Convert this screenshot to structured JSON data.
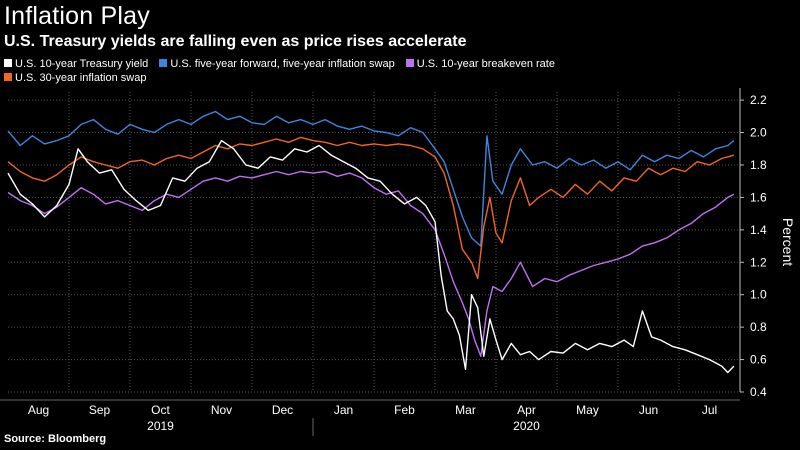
{
  "colors": {
    "background": "#000000",
    "text": "#ffffff",
    "grid": "#555555",
    "treasury": "#ffffff",
    "five_year": "#3b87e0",
    "breakeven": "#bf6ff2",
    "thirty_year": "#f26522"
  },
  "chart_data": {
    "type": "line",
    "title": "Inflation Play",
    "subtitle": "U.S. Treasury yields are falling even as price rises accelerate",
    "source": "Source: Bloomberg",
    "xlabel": "",
    "ylabel": "Percent",
    "ylim": [
      0.4,
      2.25
    ],
    "y_ticks": [
      0.4,
      0.6,
      0.8,
      1.0,
      1.2,
      1.4,
      1.6,
      1.8,
      2.0,
      2.2
    ],
    "y_tick_labels": [
      "0.4",
      "0.6",
      "0.8",
      "1.0",
      "1.2",
      "1.4",
      "1.6",
      "1.8",
      "2.0",
      "2.2"
    ],
    "x_domain_months": [
      0,
      12.0
    ],
    "x_ticks": [
      {
        "label": "Aug",
        "month": 0.5
      },
      {
        "label": "Sep",
        "month": 1.5
      },
      {
        "label": "Oct",
        "month": 2.5
      },
      {
        "label": "Nov",
        "month": 3.5
      },
      {
        "label": "Dec",
        "month": 4.5
      },
      {
        "label": "Jan",
        "month": 5.5
      },
      {
        "label": "Feb",
        "month": 6.5
      },
      {
        "label": "Mar",
        "month": 7.5
      },
      {
        "label": "Apr",
        "month": 8.5
      },
      {
        "label": "May",
        "month": 9.5
      },
      {
        "label": "Jun",
        "month": 10.5
      },
      {
        "label": "Jul",
        "month": 11.5
      }
    ],
    "year_labels": [
      {
        "label": "2019",
        "month": 2.5
      },
      {
        "label": "2020",
        "month": 8.5
      }
    ],
    "year_divider_month": 5,
    "grid": true,
    "legend_position": "top-left",
    "series": [
      {
        "name": "U.S. 10-year Treasury yield",
        "color_key": "treasury",
        "points": [
          [
            0,
            1.75
          ],
          [
            0.2,
            1.62
          ],
          [
            0.4,
            1.56
          ],
          [
            0.6,
            1.48
          ],
          [
            0.8,
            1.55
          ],
          [
            1.0,
            1.68
          ],
          [
            1.15,
            1.9
          ],
          [
            1.3,
            1.82
          ],
          [
            1.5,
            1.75
          ],
          [
            1.7,
            1.77
          ],
          [
            1.9,
            1.65
          ],
          [
            2.1,
            1.58
          ],
          [
            2.3,
            1.52
          ],
          [
            2.5,
            1.55
          ],
          [
            2.7,
            1.72
          ],
          [
            2.9,
            1.7
          ],
          [
            3.1,
            1.78
          ],
          [
            3.3,
            1.82
          ],
          [
            3.5,
            1.95
          ],
          [
            3.7,
            1.9
          ],
          [
            3.9,
            1.8
          ],
          [
            4.1,
            1.78
          ],
          [
            4.3,
            1.85
          ],
          [
            4.5,
            1.83
          ],
          [
            4.7,
            1.9
          ],
          [
            4.9,
            1.88
          ],
          [
            5.1,
            1.92
          ],
          [
            5.3,
            1.86
          ],
          [
            5.5,
            1.82
          ],
          [
            5.7,
            1.78
          ],
          [
            5.9,
            1.72
          ],
          [
            6.1,
            1.7
          ],
          [
            6.3,
            1.62
          ],
          [
            6.5,
            1.56
          ],
          [
            6.7,
            1.6
          ],
          [
            6.85,
            1.55
          ],
          [
            7.0,
            1.45
          ],
          [
            7.1,
            1.12
          ],
          [
            7.2,
            0.9
          ],
          [
            7.3,
            0.85
          ],
          [
            7.4,
            0.75
          ],
          [
            7.5,
            0.54
          ],
          [
            7.6,
            1.0
          ],
          [
            7.7,
            0.92
          ],
          [
            7.8,
            0.62
          ],
          [
            7.9,
            0.85
          ],
          [
            8.0,
            0.72
          ],
          [
            8.1,
            0.6
          ],
          [
            8.25,
            0.7
          ],
          [
            8.4,
            0.63
          ],
          [
            8.55,
            0.65
          ],
          [
            8.7,
            0.6
          ],
          [
            8.9,
            0.65
          ],
          [
            9.1,
            0.64
          ],
          [
            9.3,
            0.7
          ],
          [
            9.5,
            0.66
          ],
          [
            9.7,
            0.7
          ],
          [
            9.9,
            0.68
          ],
          [
            10.1,
            0.72
          ],
          [
            10.25,
            0.68
          ],
          [
            10.4,
            0.9
          ],
          [
            10.55,
            0.74
          ],
          [
            10.7,
            0.72
          ],
          [
            10.9,
            0.68
          ],
          [
            11.1,
            0.66
          ],
          [
            11.3,
            0.63
          ],
          [
            11.5,
            0.6
          ],
          [
            11.7,
            0.56
          ],
          [
            11.8,
            0.52
          ],
          [
            11.9,
            0.56
          ]
        ]
      },
      {
        "name": "U.S. five-year forward, five-year inflation swap",
        "color_key": "five_year",
        "points": [
          [
            0,
            2.01
          ],
          [
            0.2,
            1.92
          ],
          [
            0.4,
            1.98
          ],
          [
            0.6,
            1.93
          ],
          [
            0.8,
            1.95
          ],
          [
            1.0,
            1.98
          ],
          [
            1.2,
            2.05
          ],
          [
            1.4,
            2.08
          ],
          [
            1.6,
            2.02
          ],
          [
            1.8,
            1.99
          ],
          [
            2.0,
            2.05
          ],
          [
            2.2,
            2.02
          ],
          [
            2.4,
            2.0
          ],
          [
            2.6,
            2.05
          ],
          [
            2.8,
            2.08
          ],
          [
            3.0,
            2.05
          ],
          [
            3.2,
            2.1
          ],
          [
            3.4,
            2.13
          ],
          [
            3.6,
            2.08
          ],
          [
            3.8,
            2.1
          ],
          [
            4.0,
            2.06
          ],
          [
            4.2,
            2.05
          ],
          [
            4.4,
            2.1
          ],
          [
            4.6,
            2.06
          ],
          [
            4.8,
            2.08
          ],
          [
            5.0,
            2.05
          ],
          [
            5.2,
            2.08
          ],
          [
            5.4,
            2.04
          ],
          [
            5.6,
            2.02
          ],
          [
            5.8,
            2.04
          ],
          [
            6.0,
            2.01
          ],
          [
            6.2,
            2.0
          ],
          [
            6.4,
            1.98
          ],
          [
            6.6,
            2.03
          ],
          [
            6.8,
            2.0
          ],
          [
            7.0,
            1.9
          ],
          [
            7.15,
            1.82
          ],
          [
            7.3,
            1.65
          ],
          [
            7.45,
            1.48
          ],
          [
            7.6,
            1.35
          ],
          [
            7.75,
            1.3
          ],
          [
            7.85,
            1.98
          ],
          [
            7.95,
            1.7
          ],
          [
            8.1,
            1.62
          ],
          [
            8.25,
            1.8
          ],
          [
            8.4,
            1.9
          ],
          [
            8.6,
            1.8
          ],
          [
            8.8,
            1.82
          ],
          [
            9.0,
            1.78
          ],
          [
            9.2,
            1.84
          ],
          [
            9.4,
            1.8
          ],
          [
            9.6,
            1.83
          ],
          [
            9.8,
            1.78
          ],
          [
            10.0,
            1.82
          ],
          [
            10.2,
            1.77
          ],
          [
            10.4,
            1.86
          ],
          [
            10.6,
            1.82
          ],
          [
            10.8,
            1.86
          ],
          [
            11.0,
            1.84
          ],
          [
            11.2,
            1.89
          ],
          [
            11.4,
            1.85
          ],
          [
            11.6,
            1.9
          ],
          [
            11.8,
            1.92
          ],
          [
            11.9,
            1.95
          ]
        ]
      },
      {
        "name": "U.S. 10-year breakeven rate",
        "color_key": "breakeven",
        "points": [
          [
            0,
            1.63
          ],
          [
            0.2,
            1.58
          ],
          [
            0.4,
            1.55
          ],
          [
            0.6,
            1.5
          ],
          [
            0.8,
            1.54
          ],
          [
            1.0,
            1.6
          ],
          [
            1.2,
            1.66
          ],
          [
            1.4,
            1.62
          ],
          [
            1.6,
            1.56
          ],
          [
            1.8,
            1.58
          ],
          [
            2.0,
            1.55
          ],
          [
            2.2,
            1.52
          ],
          [
            2.4,
            1.58
          ],
          [
            2.6,
            1.62
          ],
          [
            2.8,
            1.6
          ],
          [
            3.0,
            1.65
          ],
          [
            3.2,
            1.7
          ],
          [
            3.4,
            1.72
          ],
          [
            3.6,
            1.7
          ],
          [
            3.8,
            1.73
          ],
          [
            4.0,
            1.72
          ],
          [
            4.2,
            1.74
          ],
          [
            4.4,
            1.76
          ],
          [
            4.6,
            1.74
          ],
          [
            4.8,
            1.76
          ],
          [
            5.0,
            1.75
          ],
          [
            5.2,
            1.76
          ],
          [
            5.4,
            1.73
          ],
          [
            5.6,
            1.75
          ],
          [
            5.8,
            1.72
          ],
          [
            6.0,
            1.66
          ],
          [
            6.2,
            1.62
          ],
          [
            6.4,
            1.64
          ],
          [
            6.6,
            1.55
          ],
          [
            6.8,
            1.5
          ],
          [
            7.0,
            1.4
          ],
          [
            7.15,
            1.25
          ],
          [
            7.3,
            1.08
          ],
          [
            7.45,
            0.95
          ],
          [
            7.55,
            0.85
          ],
          [
            7.65,
            0.72
          ],
          [
            7.75,
            0.62
          ],
          [
            7.85,
            0.9
          ],
          [
            7.95,
            1.05
          ],
          [
            8.1,
            1.02
          ],
          [
            8.25,
            1.1
          ],
          [
            8.4,
            1.2
          ],
          [
            8.6,
            1.05
          ],
          [
            8.8,
            1.1
          ],
          [
            9.0,
            1.08
          ],
          [
            9.2,
            1.12
          ],
          [
            9.4,
            1.15
          ],
          [
            9.6,
            1.18
          ],
          [
            9.8,
            1.2
          ],
          [
            10.0,
            1.22
          ],
          [
            10.2,
            1.25
          ],
          [
            10.4,
            1.3
          ],
          [
            10.6,
            1.32
          ],
          [
            10.8,
            1.35
          ],
          [
            11.0,
            1.4
          ],
          [
            11.2,
            1.44
          ],
          [
            11.4,
            1.5
          ],
          [
            11.6,
            1.54
          ],
          [
            11.8,
            1.6
          ],
          [
            11.9,
            1.62
          ]
        ]
      },
      {
        "name": "U.S. 30-year inflation swap",
        "color_key": "thirty_year",
        "points": [
          [
            0,
            1.82
          ],
          [
            0.2,
            1.76
          ],
          [
            0.4,
            1.72
          ],
          [
            0.6,
            1.7
          ],
          [
            0.8,
            1.74
          ],
          [
            1.0,
            1.8
          ],
          [
            1.2,
            1.85
          ],
          [
            1.4,
            1.82
          ],
          [
            1.6,
            1.8
          ],
          [
            1.8,
            1.78
          ],
          [
            2.0,
            1.82
          ],
          [
            2.2,
            1.83
          ],
          [
            2.4,
            1.8
          ],
          [
            2.6,
            1.84
          ],
          [
            2.8,
            1.86
          ],
          [
            3.0,
            1.84
          ],
          [
            3.2,
            1.88
          ],
          [
            3.4,
            1.92
          ],
          [
            3.6,
            1.9
          ],
          [
            3.8,
            1.93
          ],
          [
            4.0,
            1.92
          ],
          [
            4.2,
            1.94
          ],
          [
            4.4,
            1.96
          ],
          [
            4.6,
            1.94
          ],
          [
            4.8,
            1.97
          ],
          [
            5.0,
            1.95
          ],
          [
            5.2,
            1.94
          ],
          [
            5.4,
            1.92
          ],
          [
            5.6,
            1.94
          ],
          [
            5.8,
            1.92
          ],
          [
            6.0,
            1.93
          ],
          [
            6.2,
            1.92
          ],
          [
            6.4,
            1.93
          ],
          [
            6.6,
            1.92
          ],
          [
            6.8,
            1.9
          ],
          [
            7.0,
            1.85
          ],
          [
            7.15,
            1.75
          ],
          [
            7.3,
            1.55
          ],
          [
            7.45,
            1.28
          ],
          [
            7.6,
            1.2
          ],
          [
            7.7,
            1.1
          ],
          [
            7.8,
            1.42
          ],
          [
            7.9,
            1.6
          ],
          [
            8.0,
            1.38
          ],
          [
            8.1,
            1.32
          ],
          [
            8.25,
            1.58
          ],
          [
            8.4,
            1.72
          ],
          [
            8.55,
            1.55
          ],
          [
            8.7,
            1.6
          ],
          [
            8.9,
            1.65
          ],
          [
            9.1,
            1.6
          ],
          [
            9.3,
            1.68
          ],
          [
            9.5,
            1.62
          ],
          [
            9.7,
            1.7
          ],
          [
            9.9,
            1.64
          ],
          [
            10.1,
            1.72
          ],
          [
            10.3,
            1.7
          ],
          [
            10.5,
            1.78
          ],
          [
            10.7,
            1.74
          ],
          [
            10.9,
            1.78
          ],
          [
            11.1,
            1.76
          ],
          [
            11.3,
            1.82
          ],
          [
            11.5,
            1.8
          ],
          [
            11.7,
            1.84
          ],
          [
            11.9,
            1.86
          ]
        ]
      }
    ]
  }
}
